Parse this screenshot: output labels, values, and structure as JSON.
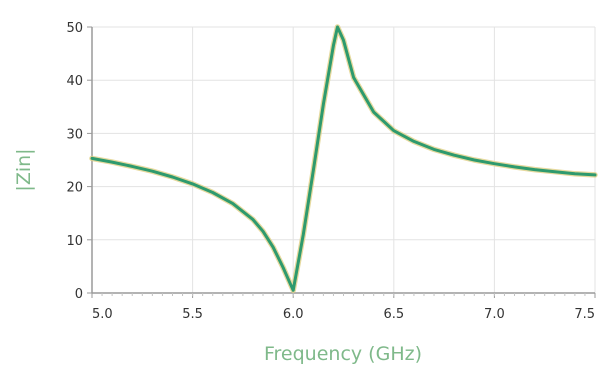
{
  "chart_data": {
    "type": "line",
    "title": "",
    "xlabel": "Frequency (GHz)",
    "ylabel": "|Zin|",
    "xlim": [
      5.0,
      7.5
    ],
    "ylim": [
      0,
      50
    ],
    "x_ticks": [
      "5.0",
      "5.5",
      "6.0",
      "6.5",
      "7.0",
      "7.5"
    ],
    "y_ticks": [
      "0",
      "10",
      "20",
      "30",
      "40",
      "50"
    ],
    "grid": true,
    "legend": "none",
    "series": [
      {
        "color": "#2e9a6e",
        "x": [
          5.0,
          5.1,
          5.2,
          5.3,
          5.4,
          5.5,
          5.6,
          5.7,
          5.8,
          5.85,
          5.9,
          5.95,
          5.98,
          6.0,
          6.05,
          6.1,
          6.15,
          6.2,
          6.22,
          6.25,
          6.3,
          6.4,
          6.5,
          6.6,
          6.7,
          6.8,
          6.9,
          7.0,
          7.1,
          7.2,
          7.3,
          7.4,
          7.5
        ],
        "y": [
          25.3,
          24.6,
          23.8,
          22.9,
          21.8,
          20.5,
          18.9,
          16.8,
          13.8,
          11.6,
          8.6,
          4.8,
          2.2,
          0.5,
          11.0,
          23.0,
          35.5,
          46.5,
          50.0,
          47.5,
          40.5,
          34.0,
          30.5,
          28.5,
          27.0,
          25.9,
          25.0,
          24.3,
          23.7,
          23.2,
          22.8,
          22.4,
          22.2
        ]
      }
    ]
  }
}
